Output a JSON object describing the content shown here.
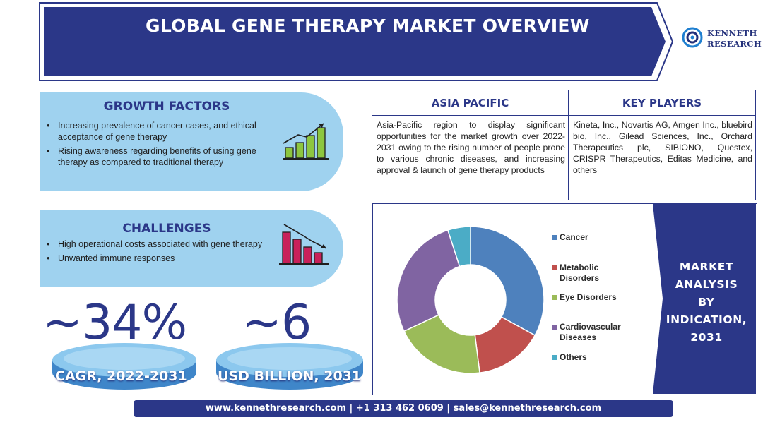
{
  "header": {
    "title": "GLOBAL GENE THERAPY MARKET OVERVIEW"
  },
  "logo": {
    "line1": "KENNETH",
    "line2": "RESEARCH"
  },
  "growth_factors": {
    "title": "GROWTH FACTORS",
    "items": [
      "Increasing prevalence of cancer cases, and ethical acceptance of gene therapy",
      "Rising awareness regarding benefits of using gene therapy as compared to traditional therapy"
    ]
  },
  "challenges": {
    "title": "CHALLENGES",
    "items": [
      "High operational costs associated with gene therapy",
      "Unwanted immune responses"
    ]
  },
  "stats": {
    "cagr": {
      "value": "~34%",
      "label": "CAGR, 2022-2031"
    },
    "market": {
      "value": "~6",
      "label": "USD BILLION, 2031"
    }
  },
  "asia_pacific": {
    "title": "ASIA PACIFIC",
    "text": "Asia-Pacific region to display significant opportunities for the market growth over 2022-2031 owing to the rising number of people prone to various chronic diseases, and increasing approval & launch of gene therapy products"
  },
  "key_players": {
    "title": "KEY PLAYERS",
    "text": "Kineta, Inc., Novartis AG, Amgen Inc., bluebird bio, Inc., Gilead Sciences, Inc., Orchard Therapeutics plc, SIBIONO, Questex, CRISPR Therapeutics, Editas Medicine, and others"
  },
  "chart_data": {
    "type": "pie",
    "donut": true,
    "title": "MARKET ANALYSIS BY INDICATION, 2031",
    "categories": [
      "Cancer",
      "Metabolic Disorders",
      "Eye Disorders",
      "Cardiovascular Diseases",
      "Others"
    ],
    "values": [
      33,
      15,
      20,
      27,
      5
    ],
    "colors": [
      "#4e81bd",
      "#c0504d",
      "#9bbb59",
      "#8064a2",
      "#4bacc6"
    ],
    "legend_position": "right"
  },
  "side_title_lines": [
    "MARKET",
    "ANALYSIS",
    "BY",
    "INDICATION,",
    "2031"
  ],
  "footer": {
    "text": "www.kennethresearch.com | +1 313 462 0609 | sales@kennethresearch.com"
  },
  "colors": {
    "navy": "#2b3788",
    "panel": "#9fd2ef",
    "disc": "#7cc0ea"
  }
}
